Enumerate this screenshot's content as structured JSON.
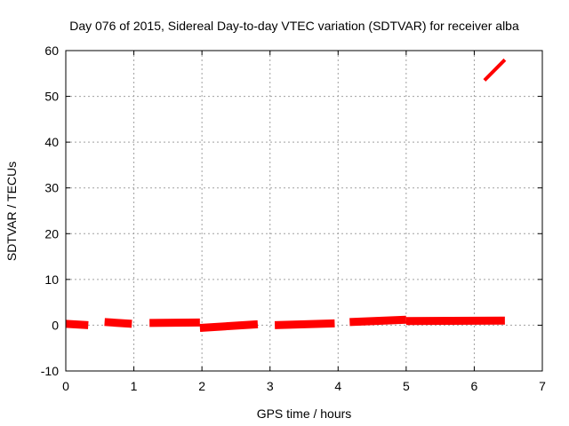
{
  "chart_data": {
    "type": "scatter",
    "title": "Day 076 of 2015, Sidereal Day-to-day VTEC variation (SDTVAR) for receiver alba",
    "xlabel": "GPS time / hours",
    "ylabel": "SDTVAR / TECUs",
    "xlim": [
      0,
      7
    ],
    "ylim": [
      -10,
      60
    ],
    "xticks": [
      "0",
      "1",
      "2",
      "3",
      "4",
      "5",
      "6",
      "7"
    ],
    "yticks": [
      "-10",
      "0",
      "10",
      "20",
      "30",
      "40",
      "50",
      "60"
    ],
    "grid": true,
    "series_color": "#ff0000",
    "segments": [
      {
        "x": [
          0.0,
          0.33
        ],
        "y": [
          0.3,
          0.0
        ]
      },
      {
        "x": [
          0.57,
          0.97
        ],
        "y": [
          0.7,
          0.3
        ]
      },
      {
        "x": [
          1.23,
          1.97
        ],
        "y": [
          0.5,
          0.6
        ]
      },
      {
        "x": [
          1.97,
          2.82
        ],
        "y": [
          -0.6,
          0.2
        ]
      },
      {
        "x": [
          3.07,
          3.95
        ],
        "y": [
          0.0,
          0.4
        ]
      },
      {
        "x": [
          4.17,
          5.0
        ],
        "y": [
          0.7,
          1.2
        ]
      },
      {
        "x": [
          5.0,
          6.45
        ],
        "y": [
          0.9,
          1.0
        ]
      },
      {
        "x": [
          6.15,
          6.45
        ],
        "y": [
          53.5,
          58.0
        ]
      }
    ]
  }
}
